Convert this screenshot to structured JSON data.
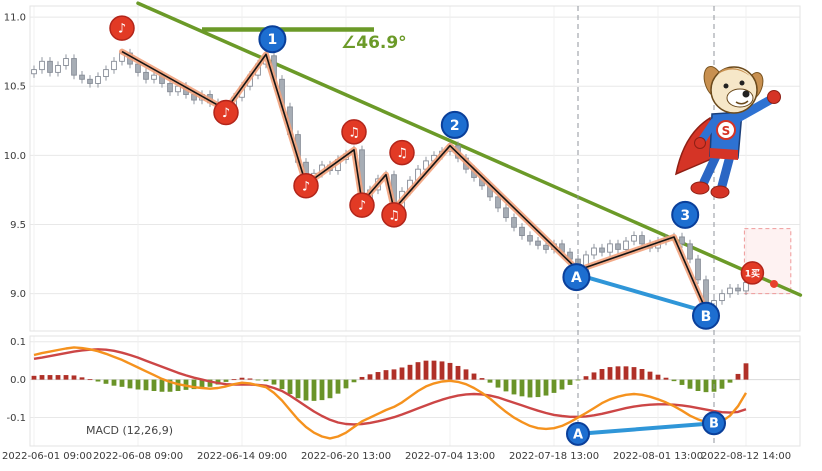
{
  "page": {
    "background": "#ffffff"
  },
  "colors": {
    "grid": "#e8e8e8",
    "axis_text": "#3a3a3a",
    "panel_border": "#e3e3e3",
    "candle_up_fill": "#ffffff",
    "candle_down_fill": "#a7adb5",
    "candle_stroke": "#868c96",
    "trendline": "#6b9a28",
    "wave_glow": "#f2a27c",
    "wave_line": "#151515",
    "ab_line": "#2f96d8",
    "blue_marker": "#1d6ed0",
    "blue_marker_border": "#0a3f9a",
    "red_marker": "#e23a25",
    "red_marker_border": "#b2251a",
    "guide_dash": "#90959c",
    "hist_pos": "#b03028",
    "hist_neg": "#6a9428",
    "dif_line": "#f5921e",
    "dea_line": "#cc4646",
    "buy_zone_border": "#ef9a9a",
    "buy_zone_fill": "rgba(247,158,158,0.13)",
    "trend_dot": "#e8412c"
  },
  "x_axis": {
    "tick_indices": [
      0,
      13,
      26,
      39,
      52,
      65,
      78,
      89
    ],
    "labels": [
      "2022-06-01 09:00",
      "2022-06-08 09:00",
      "2022-06-14 09:00",
      "2022-06-20 13:00",
      "2022-07-04 13:00",
      "2022-07-18 13:00",
      "2022-08-01 13:00",
      "2022-08-12 14:00"
    ]
  },
  "chart_data": [
    {
      "type": "candlestick",
      "name": "price",
      "ylabel": "",
      "ylim": [
        8.73,
        11.08
      ],
      "y_ticks": [
        11.0,
        10.5,
        10.0,
        9.5,
        9.0
      ],
      "closes": [
        10.62,
        10.68,
        10.6,
        10.65,
        10.7,
        10.58,
        10.55,
        10.52,
        10.57,
        10.62,
        10.68,
        10.74,
        10.66,
        10.6,
        10.55,
        10.58,
        10.52,
        10.46,
        10.5,
        10.44,
        10.4,
        10.44,
        10.38,
        10.35,
        10.33,
        10.42,
        10.5,
        10.58,
        10.66,
        10.72,
        10.55,
        10.35,
        10.15,
        9.95,
        9.8,
        9.87,
        9.93,
        9.89,
        9.97,
        10.01,
        10.04,
        9.67,
        9.75,
        9.83,
        9.86,
        9.62,
        9.74,
        9.82,
        9.9,
        9.96,
        10.0,
        10.03,
        10.07,
        9.98,
        9.9,
        9.84,
        9.78,
        9.7,
        9.62,
        9.55,
        9.48,
        9.42,
        9.38,
        9.35,
        9.32,
        9.36,
        9.3,
        9.25,
        9.17,
        9.28,
        9.33,
        9.3,
        9.36,
        9.32,
        9.38,
        9.42,
        9.36,
        9.33,
        9.38,
        9.4,
        9.41,
        9.36,
        9.25,
        9.1,
        8.9,
        8.95,
        9.0,
        9.04,
        9.02,
        9.08
      ],
      "overlays": {
        "trendline": {
          "from_index": 13,
          "from_price": 11.1,
          "to_index": 95.8,
          "to_price": 8.99
        },
        "angle_baseline": {
          "price": 10.91,
          "from_index": 21,
          "to_index": 42.5
        },
        "angle_label": {
          "text": "∠46.9°",
          "index": 38.5,
          "price": 10.75
        },
        "wave_path": [
          [
            11,
            10.75
          ],
          [
            24,
            10.33
          ],
          [
            29,
            10.73
          ],
          [
            34,
            9.79
          ],
          [
            40,
            10.04
          ],
          [
            41,
            9.66
          ],
          [
            44,
            9.86
          ],
          [
            45,
            9.61
          ],
          [
            52,
            10.07
          ],
          [
            68,
            9.17
          ],
          [
            80,
            9.41
          ],
          [
            84,
            8.88
          ]
        ],
        "ab_line": {
          "from": [
            67.8,
            9.14
          ],
          "to": [
            84,
            8.87
          ]
        },
        "wave_labels": [
          {
            "text": "1",
            "index": 29.8,
            "price": 10.84
          },
          {
            "text": "2",
            "index": 52.6,
            "price": 10.22
          },
          {
            "text": "3",
            "index": 81.4,
            "price": 9.57
          },
          {
            "text": "A",
            "index": 67.8,
            "price": 9.12
          },
          {
            "text": "B",
            "index": 84,
            "price": 8.84
          }
        ],
        "signal_markers": [
          {
            "glyph": "♪",
            "index": 11,
            "price": 10.92
          },
          {
            "glyph": "♪",
            "index": 24,
            "price": 10.31
          },
          {
            "glyph": "♪",
            "index": 34,
            "price": 9.78
          },
          {
            "glyph": "♫",
            "index": 40,
            "price": 10.17
          },
          {
            "glyph": "♪",
            "index": 41,
            "price": 9.64
          },
          {
            "glyph": "♫",
            "index": 45,
            "price": 9.57
          },
          {
            "glyph": "♫",
            "index": 46,
            "price": 10.02
          }
        ],
        "guide_line_indices": [
          68,
          85
        ],
        "buy_zone": {
          "from_index": 88.8,
          "to_index": 94.6,
          "top_price": 9.47,
          "bottom_price": 9.0
        },
        "buy_marker": {
          "text": "1买",
          "index": 89.8,
          "price": 9.15
        },
        "trend_dot": {
          "index": 92.5,
          "price": 9.07
        }
      }
    },
    {
      "type": "macd",
      "name": "macd",
      "title": "MACD (12,26,9)",
      "ylim": [
        -0.175,
        0.115
      ],
      "y_ticks": [
        0.1,
        0.0,
        -0.1
      ],
      "series": [
        {
          "name": "DIF",
          "values": [
            0.065,
            0.07,
            0.074,
            0.078,
            0.082,
            0.085,
            0.083,
            0.08,
            0.075,
            0.068,
            0.06,
            0.052,
            0.042,
            0.032,
            0.022,
            0.012,
            0.002,
            -0.006,
            -0.012,
            -0.016,
            -0.02,
            -0.022,
            -0.024,
            -0.022,
            -0.018,
            -0.012,
            -0.008,
            -0.01,
            -0.015,
            -0.02,
            -0.035,
            -0.055,
            -0.08,
            -0.105,
            -0.125,
            -0.14,
            -0.15,
            -0.155,
            -0.15,
            -0.14,
            -0.125,
            -0.11,
            -0.1,
            -0.09,
            -0.08,
            -0.072,
            -0.06,
            -0.045,
            -0.03,
            -0.018,
            -0.01,
            -0.005,
            -0.003,
            -0.006,
            -0.012,
            -0.022,
            -0.035,
            -0.05,
            -0.068,
            -0.085,
            -0.1,
            -0.112,
            -0.122,
            -0.128,
            -0.13,
            -0.128,
            -0.122,
            -0.112,
            -0.1,
            -0.088,
            -0.075,
            -0.062,
            -0.052,
            -0.045,
            -0.04,
            -0.038,
            -0.04,
            -0.045,
            -0.052,
            -0.06,
            -0.07,
            -0.082,
            -0.095,
            -0.105,
            -0.112,
            -0.115,
            -0.11,
            -0.095,
            -0.07,
            -0.035
          ]
        },
        {
          "name": "DEA",
          "values": [
            0.055,
            0.058,
            0.062,
            0.066,
            0.07,
            0.074,
            0.077,
            0.079,
            0.08,
            0.079,
            0.076,
            0.071,
            0.065,
            0.058,
            0.05,
            0.042,
            0.034,
            0.026,
            0.018,
            0.011,
            0.005,
            0.0,
            -0.005,
            -0.009,
            -0.012,
            -0.013,
            -0.013,
            -0.013,
            -0.014,
            -0.016,
            -0.022,
            -0.03,
            -0.042,
            -0.056,
            -0.07,
            -0.084,
            -0.096,
            -0.106,
            -0.113,
            -0.117,
            -0.118,
            -0.117,
            -0.114,
            -0.11,
            -0.105,
            -0.099,
            -0.092,
            -0.084,
            -0.076,
            -0.068,
            -0.06,
            -0.053,
            -0.047,
            -0.042,
            -0.039,
            -0.038,
            -0.039,
            -0.042,
            -0.047,
            -0.054,
            -0.061,
            -0.068,
            -0.075,
            -0.082,
            -0.088,
            -0.093,
            -0.096,
            -0.098,
            -0.098,
            -0.097,
            -0.094,
            -0.09,
            -0.085,
            -0.08,
            -0.075,
            -0.071,
            -0.068,
            -0.066,
            -0.065,
            -0.065,
            -0.066,
            -0.068,
            -0.071,
            -0.075,
            -0.079,
            -0.083,
            -0.086,
            -0.087,
            -0.085,
            -0.078
          ]
        }
      ],
      "histogram": [
        0.01,
        0.012,
        0.012,
        0.012,
        0.012,
        0.011,
        0.006,
        0.001,
        -0.005,
        -0.011,
        -0.016,
        -0.019,
        -0.023,
        -0.026,
        -0.028,
        -0.03,
        -0.032,
        -0.032,
        -0.03,
        -0.027,
        -0.025,
        -0.022,
        -0.019,
        -0.013,
        -0.006,
        0.001,
        0.005,
        0.003,
        -0.001,
        -0.004,
        -0.013,
        -0.025,
        -0.038,
        -0.049,
        -0.055,
        -0.056,
        -0.054,
        -0.049,
        -0.037,
        -0.023,
        -0.007,
        0.007,
        0.014,
        0.02,
        0.025,
        0.027,
        0.032,
        0.039,
        0.046,
        0.05,
        0.05,
        0.048,
        0.044,
        0.036,
        0.027,
        0.016,
        0.004,
        -0.008,
        -0.021,
        -0.031,
        -0.039,
        -0.044,
        -0.047,
        -0.046,
        -0.042,
        -0.035,
        -0.026,
        -0.014,
        -0.002,
        0.009,
        0.019,
        0.028,
        0.033,
        0.035,
        0.035,
        0.033,
        0.028,
        0.021,
        0.013,
        0.005,
        -0.004,
        -0.014,
        -0.024,
        -0.03,
        -0.033,
        -0.032,
        -0.024,
        -0.008,
        0.015,
        0.043
      ],
      "ab_line": {
        "from": [
          68,
          -0.143
        ],
        "to": [
          85,
          -0.115
        ]
      },
      "ab_labels": [
        {
          "text": "A",
          "index": 68,
          "value": -0.143
        },
        {
          "text": "B",
          "index": 85,
          "value": -0.115
        }
      ]
    }
  ],
  "mascot": {
    "icon": "superhero-dog"
  }
}
